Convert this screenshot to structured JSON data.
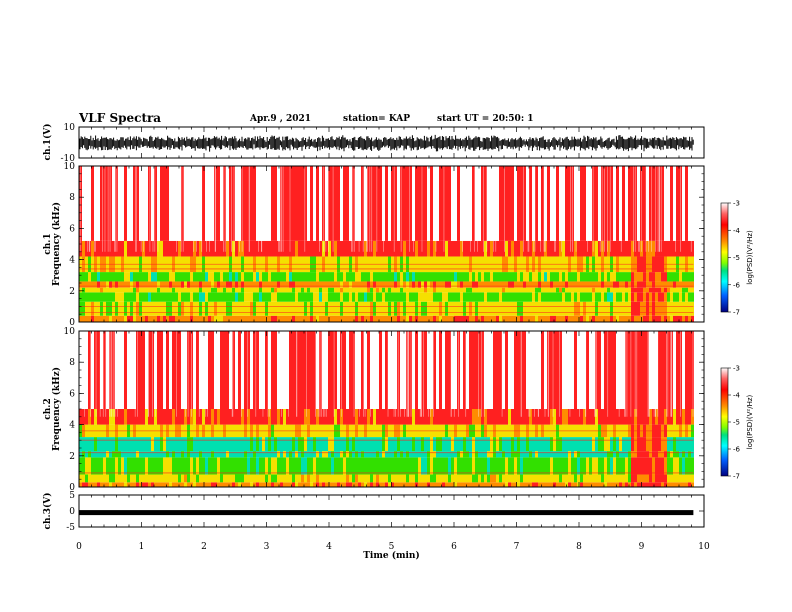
{
  "header": {
    "title": "VLF Spectra",
    "date": "Apr.9 , 2021",
    "station": "station= KAP",
    "start": "start UT = 20:50: 1"
  },
  "chart_data": [
    {
      "type": "line",
      "name": "waveform-ch1",
      "ylabel": "ch.1(V)",
      "ylim": [
        -10,
        10
      ],
      "yticks": [
        "10",
        "-10"
      ],
      "xlim": [
        0,
        10
      ],
      "data_end": 9.83,
      "noise_band": [
        -5,
        4
      ]
    },
    {
      "type": "heatmap",
      "name": "spectrogram-ch1",
      "ylabel": "ch.1\nFrequency (kHz)",
      "ylabel_line1": "ch.1",
      "ylabel_line2": "Frequency (kHz)",
      "ylim": [
        0,
        10
      ],
      "yticks": [
        "0",
        "2",
        "4",
        "6",
        "8",
        "10"
      ],
      "xlim": [
        0,
        10
      ],
      "data_end": 9.83,
      "colorbar": {
        "label": "log(PSD)(V²/Hz)",
        "ticks": [
          "-3",
          "-4",
          "-5",
          "-6",
          "-7"
        ],
        "range": [
          -7,
          -3
        ]
      },
      "bands": [
        {
          "from": 0,
          "to": 0.4,
          "level": "orange"
        },
        {
          "from": 0.4,
          "to": 1.3,
          "level": "yellow-green"
        },
        {
          "from": 1.3,
          "to": 1.9,
          "level": "green"
        },
        {
          "from": 1.9,
          "to": 2.2,
          "level": "yellow-green"
        },
        {
          "from": 2.2,
          "to": 2.6,
          "level": "orange"
        },
        {
          "from": 2.6,
          "to": 3.2,
          "level": "green"
        },
        {
          "from": 3.2,
          "to": 4.2,
          "level": "yellow"
        },
        {
          "from": 4.2,
          "to": 5.2,
          "level": "red-orange"
        },
        {
          "from": 5.2,
          "to": 10,
          "level": "red-white"
        }
      ]
    },
    {
      "type": "heatmap",
      "name": "spectrogram-ch2",
      "ylabel_line1": "ch.2",
      "ylabel_line2": "Frequency (kHz)",
      "ylim": [
        0,
        10
      ],
      "yticks": [
        "0",
        "2",
        "4",
        "6",
        "8",
        "10"
      ],
      "xlim": [
        0,
        10
      ],
      "data_end": 9.83,
      "colorbar": {
        "label": "log(PSD)(V²/Hz)",
        "ticks": [
          "-3",
          "-4",
          "-5",
          "-6",
          "-7"
        ],
        "range": [
          -7,
          -3
        ]
      },
      "bands": [
        {
          "from": 0,
          "to": 0.3,
          "level": "orange"
        },
        {
          "from": 0.3,
          "to": 0.8,
          "level": "yellow-green"
        },
        {
          "from": 0.8,
          "to": 1.9,
          "level": "green"
        },
        {
          "from": 1.9,
          "to": 2.3,
          "level": "cyan-green"
        },
        {
          "from": 2.3,
          "to": 3.2,
          "level": "cyan-green"
        },
        {
          "from": 3.2,
          "to": 4.0,
          "level": "yellow"
        },
        {
          "from": 4.0,
          "to": 5.0,
          "level": "red-orange"
        },
        {
          "from": 5.0,
          "to": 10,
          "level": "red-white"
        }
      ]
    },
    {
      "type": "line",
      "name": "waveform-ch3",
      "ylabel": "ch.3(V)",
      "ylim": [
        -5,
        5
      ],
      "yticks": [
        "5",
        "0",
        "-5"
      ],
      "xlim": [
        0,
        10
      ],
      "data_end": 9.83,
      "level": -0.5
    }
  ],
  "xaxis": {
    "label": "Time (min)",
    "ticks": [
      "0",
      "1",
      "2",
      "3",
      "4",
      "5",
      "6",
      "7",
      "8",
      "9",
      "10"
    ]
  },
  "colors": {
    "red": "#ff2020",
    "orange": "#ff8c00",
    "yellow": "#f5e000",
    "green": "#32e000",
    "cyan": "#00e0b0",
    "white": "#ffffff"
  }
}
